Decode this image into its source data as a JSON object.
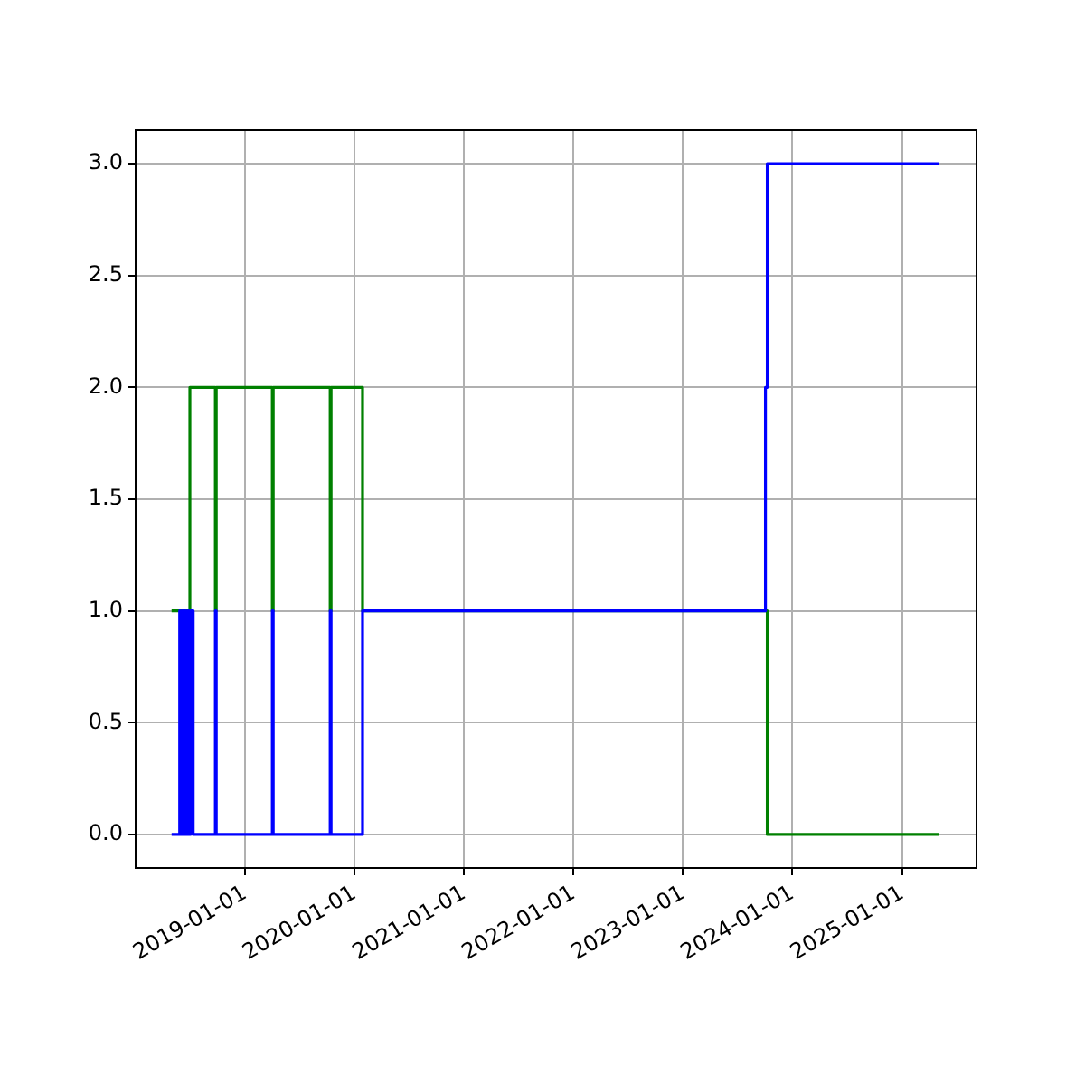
{
  "chart_data": {
    "type": "step",
    "series": [
      {
        "color": "#0000ff",
        "x": [
          "2018-05-01",
          "2018-05-28",
          "2018-05-31",
          "2018-06-06",
          "2018-06-09",
          "2018-06-15",
          "2018-06-18",
          "2018-06-24",
          "2018-06-27",
          "2018-07-03",
          "2018-07-12",
          "2018-09-24",
          "2018-09-27",
          "2019-04-02",
          "2019-04-05",
          "2019-10-12",
          "2019-10-15",
          "2020-01-28",
          "2023-10-03",
          "2023-10-09",
          "2025-05-05"
        ],
        "values": [
          0,
          1,
          0,
          1,
          0,
          1,
          0,
          1,
          0,
          1,
          0,
          1,
          0,
          1,
          0,
          1,
          0,
          1,
          2,
          3,
          3
        ]
      },
      {
        "color": "#008000",
        "x": [
          "2018-05-01",
          "2018-07-01",
          "2018-09-24",
          "2018-09-27",
          "2019-04-02",
          "2019-04-05",
          "2019-10-12",
          "2019-10-15",
          "2020-01-28",
          "2023-10-09",
          "2025-05-05"
        ],
        "values": [
          1,
          2,
          1,
          2,
          1,
          2,
          1,
          2,
          1,
          0,
          0
        ]
      }
    ],
    "xlim": [
      "2018-01-01",
      "2025-09-06"
    ],
    "xticks": [
      "2019-01-01",
      "2020-01-01",
      "2021-01-01",
      "2022-01-01",
      "2023-01-01",
      "2024-01-01",
      "2025-01-01"
    ],
    "ylim": [
      -0.15,
      3.15
    ],
    "yticks": [
      {
        "value": 0,
        "label": "0.0"
      },
      {
        "value": 0.5,
        "label": "0.5"
      },
      {
        "value": 1,
        "label": "1.0"
      },
      {
        "value": 1.5,
        "label": "1.5"
      },
      {
        "value": 2,
        "label": "2.0"
      },
      {
        "value": 2.5,
        "label": "2.5"
      },
      {
        "value": 3,
        "label": "3.0"
      }
    ],
    "grid": true,
    "legend": false
  }
}
